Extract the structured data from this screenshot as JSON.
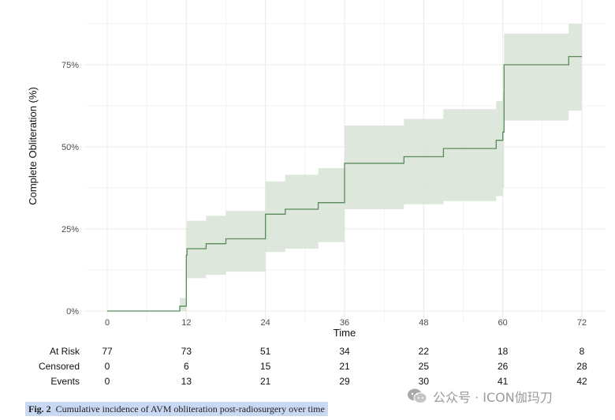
{
  "chart_data": {
    "type": "line",
    "step": true,
    "xlabel": "Time",
    "ylabel": "Complete Obliteration (%)",
    "xlim": [
      0,
      72
    ],
    "ylim": [
      0,
      0.9
    ],
    "x_ticks": [
      0,
      12,
      24,
      36,
      48,
      60,
      72
    ],
    "y_ticks": [
      0,
      0.25,
      0.5,
      0.75
    ],
    "y_tick_labels": [
      "0%",
      "25%",
      "50%",
      "75%"
    ],
    "grid": true,
    "colors": {
      "line": "#5a8a5a",
      "band": "#d7e3d5",
      "grid": "#ebebeb"
    },
    "series": [
      {
        "x": [
          0,
          11,
          12,
          12.1,
          15,
          18,
          24,
          27,
          32,
          36,
          45,
          51,
          59,
          60,
          60.2,
          70,
          72
        ],
        "y": [
          0,
          0.015,
          0.17,
          0.19,
          0.205,
          0.22,
          0.295,
          0.31,
          0.33,
          0.45,
          0.47,
          0.495,
          0.52,
          0.545,
          0.75,
          0.775,
          0.775
        ],
        "lower": [
          0,
          0,
          0.095,
          0.1,
          0.11,
          0.12,
          0.18,
          0.19,
          0.21,
          0.31,
          0.325,
          0.335,
          0.35,
          0.375,
          0.58,
          0.61,
          0.61
        ],
        "upper": [
          0,
          0.04,
          0.26,
          0.275,
          0.29,
          0.305,
          0.395,
          0.415,
          0.435,
          0.565,
          0.585,
          0.615,
          0.64,
          0.665,
          0.845,
          0.875,
          0.875
        ]
      }
    ],
    "risk_table": {
      "rows": [
        {
          "label": "At Risk",
          "values": [
            "77",
            "73",
            "51",
            "34",
            "22",
            "18",
            "8"
          ]
        },
        {
          "label": "Censored",
          "values": [
            "0",
            "6",
            "15",
            "21",
            "25",
            "26",
            "28"
          ]
        },
        {
          "label": "Events",
          "values": [
            "0",
            "13",
            "21",
            "29",
            "30",
            "41",
            "42"
          ]
        }
      ]
    }
  },
  "caption": {
    "label": "Fig. 2",
    "text": "Cumulative incidence of AVM obliteration post-radiosurgery over time"
  },
  "watermark": {
    "text": "公众号 · ICON伽玛刀",
    "icon": "wechat-icon"
  }
}
